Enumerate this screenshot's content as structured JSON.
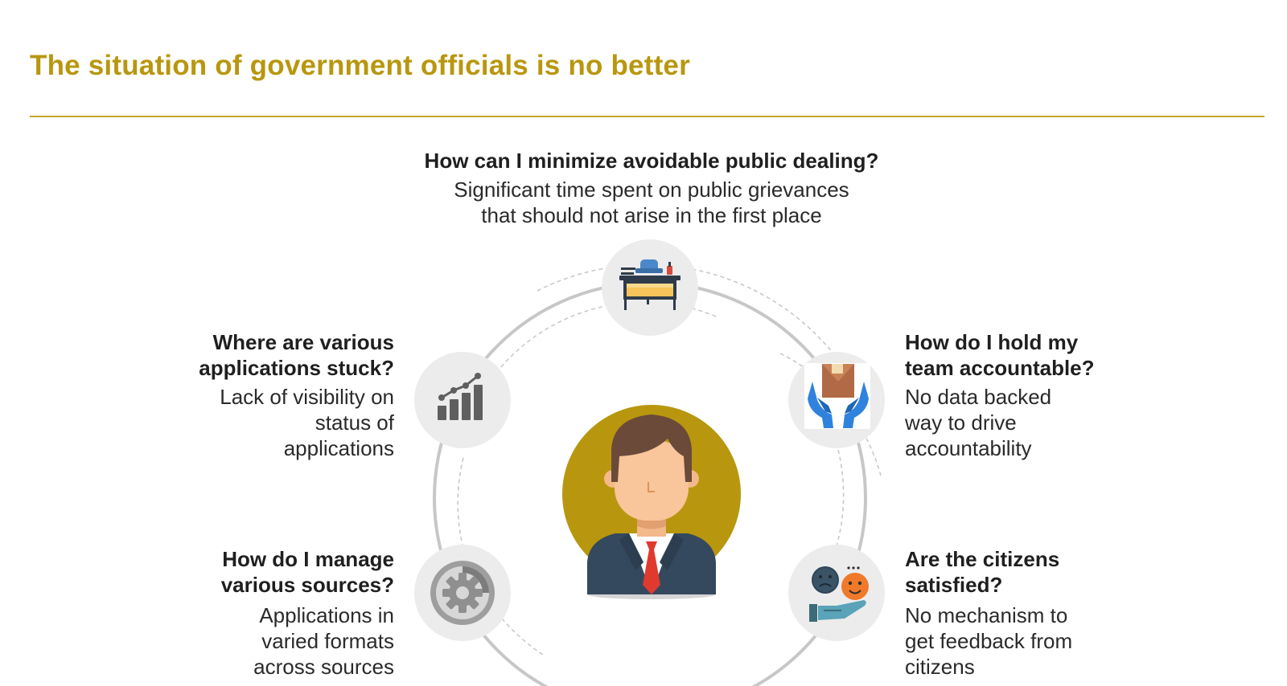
{
  "slide": {
    "title": "The situation of government officials is no better"
  },
  "items": [
    {
      "id": "public-dealing",
      "question": "How can I minimize avoidable public dealing?",
      "description_lines": [
        "Significant time spent on public grievances",
        "that should not arise in the first place"
      ],
      "icon": "desk-icon"
    },
    {
      "id": "applications-stuck",
      "question_lines": [
        "Where are various",
        "applications stuck?"
      ],
      "description_lines": [
        "Lack of visibility on",
        "status of",
        "applications"
      ],
      "icon": "bar-chart-icon"
    },
    {
      "id": "team-accountable",
      "question_lines": [
        "How do I hold my",
        "team accountable?"
      ],
      "description_lines": [
        "No data backed",
        "way to drive",
        "accountability"
      ],
      "icon": "hands-box-icon"
    },
    {
      "id": "various-sources",
      "question_lines": [
        "How do I manage",
        "various sources?"
      ],
      "description_lines": [
        "Applications in",
        "varied formats",
        "across sources"
      ],
      "icon": "gear-icon"
    },
    {
      "id": "citizens-satisfied",
      "question_lines": [
        "Are the citizens",
        "satisfied?"
      ],
      "description_lines": [
        "No mechanism to",
        "get feedback from",
        "citizens"
      ],
      "icon": "feedback-faces-icon"
    }
  ],
  "center": {
    "icon": "official-avatar-icon"
  },
  "colors": {
    "title": "#b8970f",
    "divider": "#c8a52a",
    "avatar_bg": "#b8970f",
    "icon_circle_bg": "#ececec",
    "ring": "#c7c7c7"
  }
}
